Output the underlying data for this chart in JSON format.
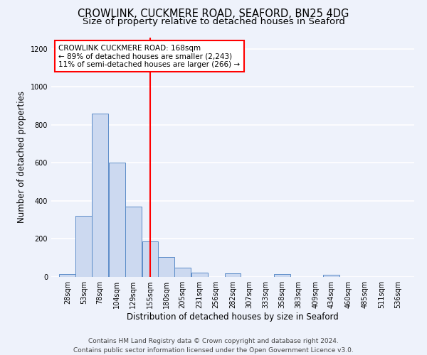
{
  "title": "CROWLINK, CUCKMERE ROAD, SEAFORD, BN25 4DG",
  "subtitle": "Size of property relative to detached houses in Seaford",
  "xlabel": "Distribution of detached houses by size in Seaford",
  "ylabel": "Number of detached properties",
  "bin_labels": [
    "28sqm",
    "53sqm",
    "78sqm",
    "104sqm",
    "129sqm",
    "155sqm",
    "180sqm",
    "205sqm",
    "231sqm",
    "256sqm",
    "282sqm",
    "307sqm",
    "333sqm",
    "358sqm",
    "383sqm",
    "409sqm",
    "434sqm",
    "460sqm",
    "485sqm",
    "511sqm",
    "536sqm"
  ],
  "bin_edges": [
    28,
    53,
    78,
    104,
    129,
    155,
    180,
    205,
    231,
    256,
    282,
    307,
    333,
    358,
    383,
    409,
    434,
    460,
    485,
    511,
    536
  ],
  "bar_heights": [
    15,
    320,
    860,
    600,
    370,
    185,
    105,
    48,
    22,
    0,
    20,
    0,
    0,
    15,
    0,
    0,
    10,
    0,
    0,
    0,
    0
  ],
  "bar_color": "#ccd9f0",
  "bar_edge_color": "#5b8cc8",
  "ref_line_x": 168,
  "ref_line_color": "red",
  "annotation_line1": "CROWLINK CUCKMERE ROAD: 168sqm",
  "annotation_line2": "← 89% of detached houses are smaller (2,243)",
  "annotation_line3": "11% of semi-detached houses are larger (266) →",
  "annotation_box_color": "red",
  "ylim": [
    0,
    1260
  ],
  "yticks": [
    0,
    200,
    400,
    600,
    800,
    1000,
    1200
  ],
  "footer_line1": "Contains HM Land Registry data © Crown copyright and database right 2024.",
  "footer_line2": "Contains public sector information licensed under the Open Government Licence v3.0.",
  "background_color": "#eef2fb",
  "grid_color": "#ffffff",
  "title_fontsize": 10.5,
  "subtitle_fontsize": 9.5,
  "axis_label_fontsize": 8.5,
  "tick_fontsize": 7,
  "annotation_fontsize": 7.5,
  "footer_fontsize": 6.5
}
